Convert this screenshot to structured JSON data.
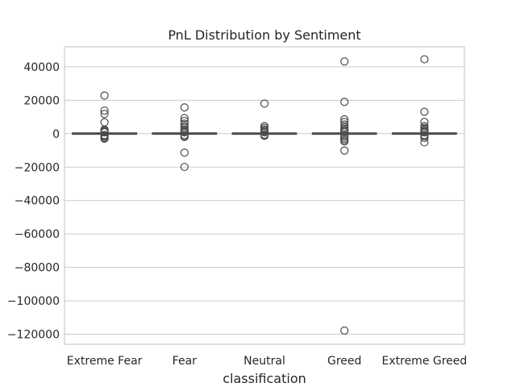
{
  "chart_data": {
    "type": "box",
    "title": "PnL Distribution by Sentiment",
    "xlabel": "classification",
    "ylabel": "",
    "categories": [
      "Extreme Fear",
      "Fear",
      "Neutral",
      "Greed",
      "Extreme Greed"
    ],
    "ylim": [
      -126000,
      52000
    ],
    "yticks": [
      40000,
      20000,
      0,
      -20000,
      -40000,
      -60000,
      -80000,
      -100000,
      -120000
    ],
    "ytick_labels": [
      "40000",
      "20000",
      "0",
      "−20000",
      "−40000",
      "−60000",
      "−80000",
      "−100000",
      "−120000"
    ],
    "grid": true,
    "colors": {
      "box_fill": "#ffffff",
      "box_edge": "#4c4c4c",
      "grid": "#cccccc",
      "frame": "#cccccc",
      "text": "#262626"
    },
    "boxes": [
      {
        "category": "Extreme Fear",
        "q1": -50,
        "median": 0,
        "q3": 50,
        "whisker_low": -400,
        "whisker_high": 400,
        "outliers": [
          22800,
          13800,
          11800,
          6800,
          2500,
          2000,
          1500,
          1000,
          800,
          -800,
          -1200,
          -1800,
          -2500,
          -3000
        ]
      },
      {
        "category": "Fear",
        "q1": -40,
        "median": 0,
        "q3": 60,
        "whisker_low": -500,
        "whisker_high": 500,
        "outliers": [
          15700,
          9300,
          7600,
          6000,
          4500,
          3500,
          2500,
          1800,
          1200,
          800,
          -800,
          -1500,
          -2000,
          -11300,
          -19900
        ]
      },
      {
        "category": "Neutral",
        "q1": -30,
        "median": 0,
        "q3": 40,
        "whisker_low": -300,
        "whisker_high": 300,
        "outliers": [
          18000,
          4500,
          3500,
          2500,
          1800,
          1200,
          800,
          -600,
          -1000,
          -1300
        ]
      },
      {
        "category": "Greed",
        "q1": -40,
        "median": 0,
        "q3": 50,
        "whisker_low": -400,
        "whisker_high": 400,
        "outliers": [
          43200,
          19000,
          8600,
          7000,
          5500,
          4000,
          3000,
          2200,
          1500,
          900,
          -900,
          -1800,
          -2800,
          -3800,
          -4600,
          -10100,
          -117800
        ]
      },
      {
        "category": "Extreme Greed",
        "q1": -40,
        "median": 0,
        "q3": 60,
        "whisker_low": -400,
        "whisker_high": 400,
        "outliers": [
          44500,
          13100,
          7000,
          4500,
          3500,
          2500,
          1800,
          1200,
          800,
          -800,
          -1500,
          -2500,
          -5200
        ]
      }
    ]
  }
}
